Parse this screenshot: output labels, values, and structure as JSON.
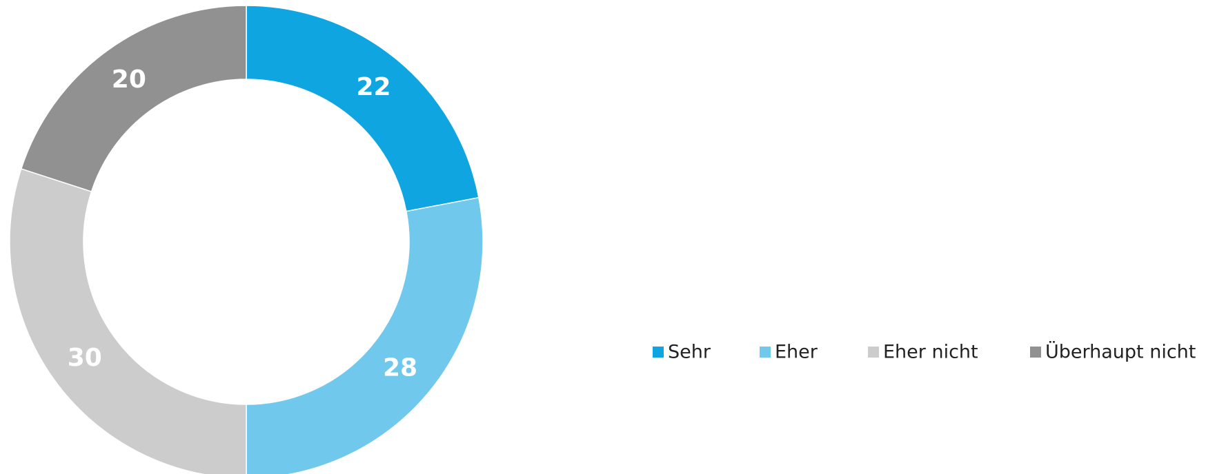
{
  "chart_data": {
    "type": "donut",
    "categories": [
      "Sehr",
      "Eher",
      "Eher nicht",
      "Überhaupt nicht"
    ],
    "values": [
      22,
      28,
      30,
      20
    ],
    "colors": [
      "#0ea5e0",
      "#70c8ec",
      "#cccccc",
      "#919191"
    ],
    "legend": "right"
  }
}
